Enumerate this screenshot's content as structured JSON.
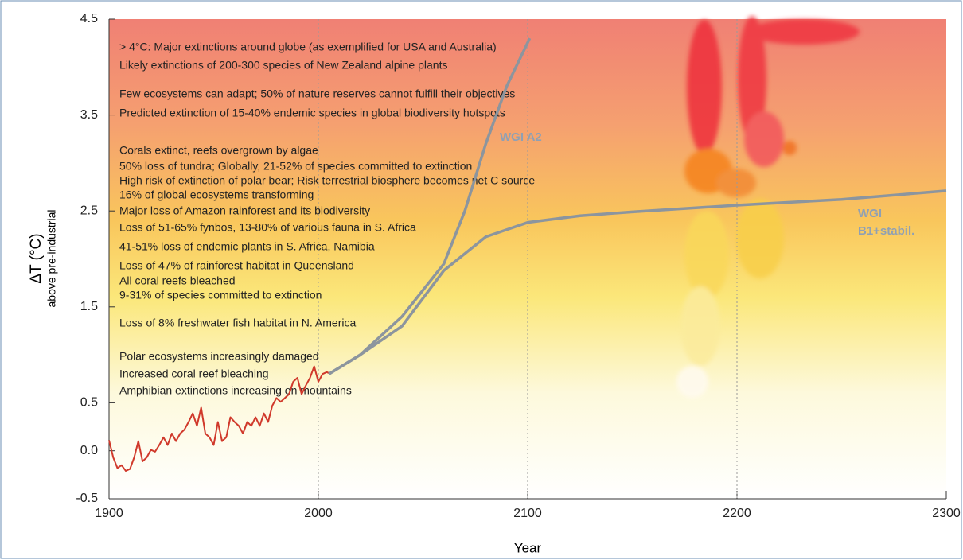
{
  "chart_data": {
    "type": "line",
    "ylabel": "ΔT (°C)",
    "ylabel_sub": "above pre-industrial",
    "xlabel": "Year",
    "xlim": [
      1900,
      2300
    ],
    "xticks": [
      1900,
      2000,
      2100,
      2200,
      2300
    ],
    "ylim": [
      -0.5,
      4.5
    ],
    "yticks": [
      -0.5,
      {
        "value": 0,
        "label": "0.0"
      },
      0.5,
      1.5,
      2.5,
      3.5,
      4.5
    ],
    "grid": "x",
    "series": [
      {
        "color": "#d0392b",
        "x": [
          1900,
          1902,
          1904,
          1906,
          1908,
          1910,
          1912,
          1914,
          1916,
          1918,
          1920,
          1922,
          1924,
          1926,
          1928,
          1930,
          1932,
          1934,
          1936,
          1938,
          1940,
          1942,
          1944,
          1946,
          1948,
          1950,
          1952,
          1954,
          1956,
          1958,
          1960,
          1962,
          1964,
          1966,
          1968,
          1970,
          1972,
          1974,
          1976,
          1978,
          1980,
          1982,
          1984,
          1986,
          1988,
          1990,
          1992,
          1994,
          1996,
          1998,
          2000,
          2002,
          2004,
          2006
        ],
        "values": [
          0.11,
          -0.07,
          -0.18,
          -0.15,
          -0.21,
          -0.19,
          -0.07,
          0.1,
          -0.11,
          -0.07,
          0.01,
          -0.01,
          0.06,
          0.14,
          0.06,
          0.18,
          0.1,
          0.18,
          0.22,
          0.3,
          0.39,
          0.26,
          0.45,
          0.18,
          0.14,
          0.06,
          0.3,
          0.1,
          0.14,
          0.35,
          0.3,
          0.26,
          0.18,
          0.3,
          0.26,
          0.35,
          0.26,
          0.39,
          0.3,
          0.47,
          0.55,
          0.51,
          0.55,
          0.59,
          0.72,
          0.76,
          0.59,
          0.68,
          0.76,
          0.88,
          0.72,
          0.8,
          0.82,
          0.8
        ]
      },
      {
        "name": "WGI A2",
        "color": "#8c959e",
        "x": [
          2005,
          2020,
          2040,
          2060,
          2070,
          2080,
          2090,
          2101
        ],
        "values": [
          0.8,
          1.0,
          1.4,
          1.95,
          2.5,
          3.2,
          3.8,
          4.3
        ]
      },
      {
        "name": "WGI B1+stabil.",
        "color": "#8c959e",
        "x": [
          2005,
          2020,
          2040,
          2060,
          2080,
          2100,
          2125,
          2150,
          2200,
          2250,
          2300
        ],
        "values": [
          0.8,
          1.0,
          1.3,
          1.88,
          2.23,
          2.38,
          2.45,
          2.49,
          2.56,
          2.62,
          2.71
        ]
      }
    ],
    "annotations": [
      "> 4°C: Major extinctions around globe (as exemplified for USA and Australia)",
      "Likely extinctions of 200-300 species of New Zealand alpine plants",
      "Few ecosystems can adapt;  50% of nature reserves cannot fulfill their objectives",
      "Predicted extinction of 15-40% endemic species in global biodiversity hotspots",
      "Corals extinct, reefs overgrown by algae",
      "50% loss of tundra;  Globally, 21-52% of species committed to extinction",
      "High risk of extinction of polar bear;  Risk terrestrial biosphere becomes net C source",
      "16% of global ecosystems transforming",
      "Major loss of Amazon rainforest and its biodiversity",
      "Loss of 51-65% fynbos, 13-80% of various fauna in S. Africa",
      "41-51% loss of endemic plants in S. Africa, Namibia",
      "Loss of 47% of rainforest habitat in Queensland",
      "All coral reefs bleached",
      "9-31% of species committed to extinction",
      "Loss of 8% freshwater fish habitat in N. America",
      "Polar ecosystems increasingly damaged",
      "Increased coral reef bleaching",
      "Amphibian extinctions increasing on mountains"
    ]
  }
}
